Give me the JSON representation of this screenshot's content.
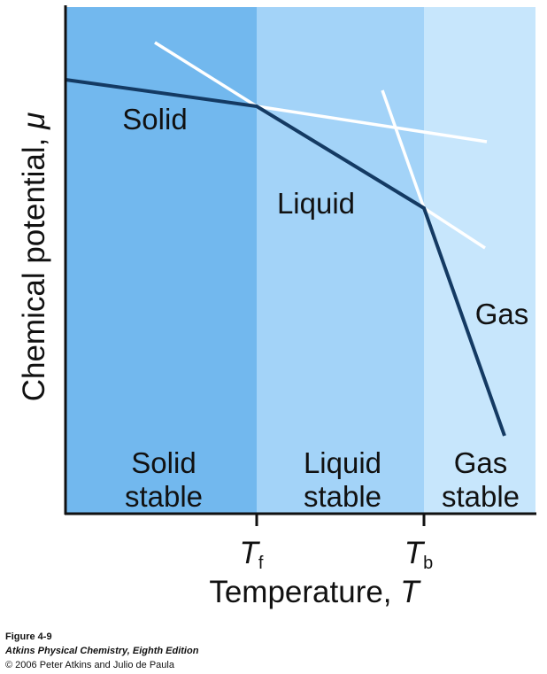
{
  "y_axis": {
    "label": "Chemical potential, ",
    "symbol": "μ"
  },
  "x_axis": {
    "label": "Temperature, ",
    "symbol": "T",
    "ticks": [
      {
        "symbol": "T",
        "subscript": "f"
      },
      {
        "symbol": "T",
        "subscript": "b"
      }
    ]
  },
  "curves": [
    {
      "label": "Solid"
    },
    {
      "label": "Liquid"
    },
    {
      "label": "Gas"
    }
  ],
  "regions": [
    {
      "lines": [
        "Solid",
        "stable"
      ]
    },
    {
      "lines": [
        "Liquid",
        "stable"
      ]
    },
    {
      "lines": [
        "Gas",
        "stable"
      ]
    }
  ],
  "caption": {
    "figure": "Figure 4-9",
    "book": "Atkins Physical Chemistry, Eighth Edition",
    "copyright": "© 2006 Peter Atkins and Julio de Paula"
  }
}
